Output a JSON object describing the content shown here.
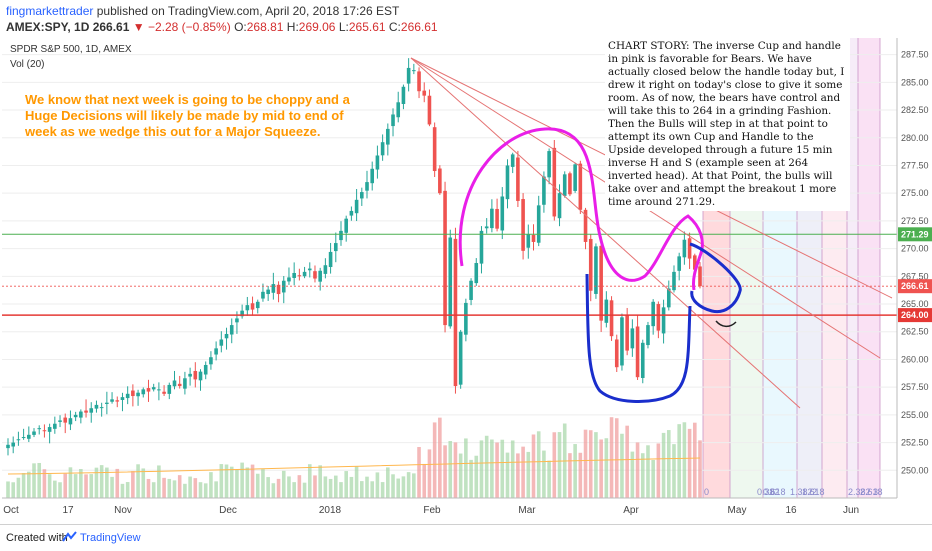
{
  "header": {
    "author": "fingmarkettrader",
    "published": "published on TradingView.com, April 20, 2018 17:26 EST",
    "symbol": "AMEX:SPY, 1D",
    "last": "266.61",
    "change": "−2.28 (−0.85%)",
    "o_label": "O:",
    "o_value": "268.81",
    "h_label": "H:",
    "h_value": "269.06",
    "l_label": "L:",
    "l_value": "265.61",
    "c_label": "C:",
    "c_value": "266.61",
    "neg_color": "#d32f2f",
    "brand_color": "#2962ff"
  },
  "chart_data": {
    "type": "candlestick",
    "title": "SPDR S&P 500, 1D, AMEX",
    "indicator": "Vol (20)",
    "ylim": [
      247.5,
      289
    ],
    "yticks": [
      "250.00",
      "252.50",
      "255.00",
      "257.50",
      "260.00",
      "262.50",
      "265.00",
      "267.50",
      "270.00",
      "272.50",
      "275.00",
      "277.50",
      "280.00",
      "282.50",
      "285.00",
      "287.50"
    ],
    "xticks": [
      "Oct",
      "17",
      "Nov",
      "Dec",
      "2018",
      "Feb",
      "Mar",
      "Apr",
      "May",
      "16",
      "Jun"
    ],
    "price_labels": [
      {
        "value": 271.29,
        "text": "271.29",
        "color": "#4caf50"
      },
      {
        "value": 266.61,
        "text": "266.61",
        "color": "#ef5350"
      },
      {
        "value": 264.0,
        "text": "264.00",
        "color": "#e53935"
      }
    ],
    "horizontal_lines": [
      {
        "value": 271.29,
        "color": "#4caf50"
      },
      {
        "value": 264.0,
        "color": "#e53935"
      }
    ],
    "closes": [
      252.3,
      252.5,
      252.8,
      253.0,
      253.2,
      253.5,
      253.8,
      253.6,
      253.9,
      254.2,
      254.5,
      254.3,
      254.7,
      255.0,
      255.3,
      255.2,
      255.6,
      255.9,
      255.7,
      256.1,
      256.4,
      256.2,
      256.6,
      256.9,
      256.7,
      257.0,
      257.3,
      257.1,
      257.5,
      257.3,
      256.9,
      257.7,
      258.1,
      257.6,
      258.3,
      258.7,
      258.2,
      258.9,
      259.5,
      260.2,
      261.0,
      261.8,
      262.3,
      263.1,
      263.7,
      264.4,
      264.9,
      264.5,
      265.2,
      266.1,
      266.3,
      266.8,
      265.9,
      267.1,
      267.4,
      267.8,
      267.5,
      267.9,
      268.2,
      267.3,
      268.0,
      268.5,
      269.7,
      270.5,
      271.6,
      272.7,
      273.4,
      274.4,
      275.1,
      276.0,
      277.2,
      278.4,
      279.6,
      280.8,
      282.1,
      283.2,
      284.6,
      286.3,
      286.1,
      284.2,
      283.8,
      281.2,
      277.0,
      275.0,
      263.1,
      271.0,
      257.6,
      262.5,
      265.1,
      267.1,
      268.7,
      271.6,
      272.0,
      273.6,
      271.8,
      274.7,
      277.5,
      278.5,
      274.3,
      269.8,
      271.3,
      270.6,
      273.9,
      276.5,
      278.8,
      272.9,
      275.0,
      276.7,
      274.9,
      277.6,
      273.5,
      270.6,
      266.2,
      270.2,
      263.5,
      265.4,
      262.1,
      259.3,
      263.8,
      260.8,
      262.8,
      258.4,
      261.5,
      263.1,
      265.2,
      262.6,
      264.7,
      266.4,
      267.9,
      269.3,
      270.8,
      269.1,
      268.1,
      266.61
    ],
    "annotation_left": "We know that next week is going to be choppy and a Huge Decisions will likely be made by mid to end of week as we wedge this out for a Major Squeeze.",
    "annotation_story": "CHART STORY: The inverse Cup and handle in pink is favorable for Bears. We have actually closed below the handle today but, I drew it right on today's close to give it some room. As of now, the bears have control and will take this to 264 in a grinding Fashion. Then the Bulls will step in at that point to attempt its own Cup and Handle to the Upside developed through a future 15 min inverse H and S (example seen at 264 inverted head). At that Point, the bulls will take over and attempt the breakout 1 more time around 271.29.",
    "fib_labels": [
      "0",
      "0.382",
      "0.618",
      "1",
      "1.382",
      "1.618",
      "2",
      "2.382",
      "2.618",
      "3"
    ]
  },
  "footer": {
    "created": "Created with",
    "brand": "TradingView"
  }
}
